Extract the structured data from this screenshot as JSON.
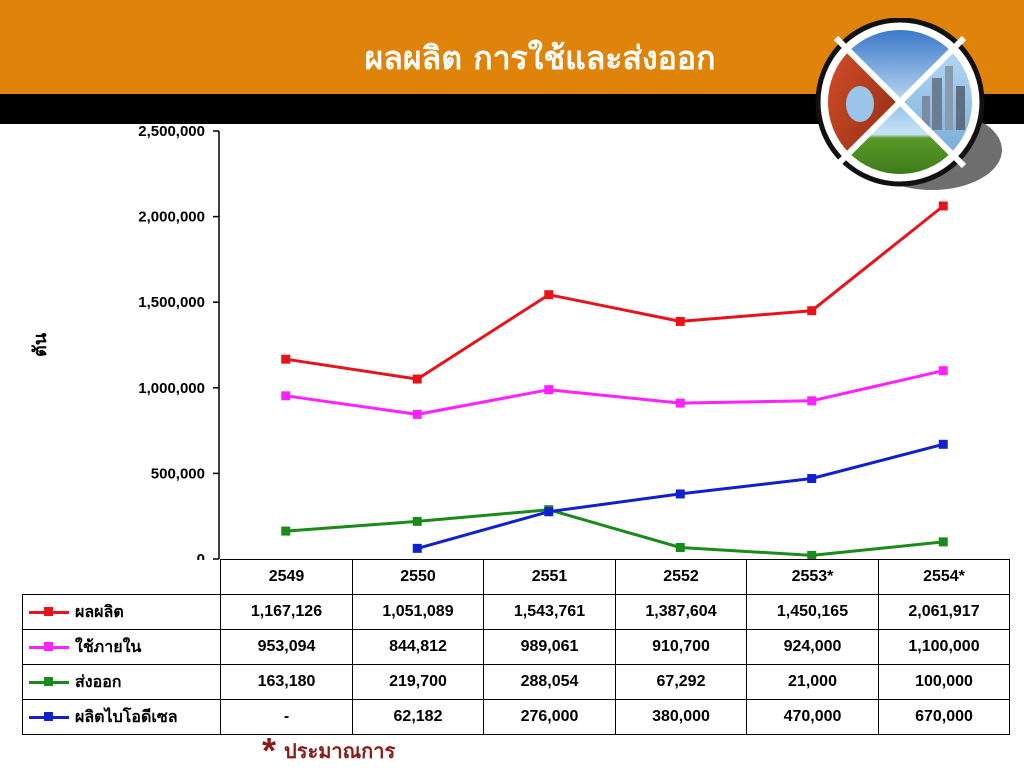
{
  "slide": {
    "title": "ผลผลิต การใช้และส่งออก",
    "colors": {
      "header_bg": "#e0830a",
      "band_bg": "#000000",
      "footnote": "#8b1a1a"
    }
  },
  "chart_data": {
    "type": "line",
    "title": "",
    "xlabel": "",
    "ylabel": "ตัน",
    "ylim": [
      0,
      2500000
    ],
    "yticks": [
      0,
      500000,
      1000000,
      1500000,
      2000000,
      2500000
    ],
    "ytick_labels": [
      "0",
      "500,000",
      "1,000,000",
      "1,500,000",
      "2,000,000",
      "2,500,000"
    ],
    "grid": false,
    "legend": "data-table",
    "categories": [
      "2549",
      "2550",
      "2551",
      "2552",
      "2553*",
      "2554*"
    ],
    "series": [
      {
        "name": "ผลผลิต",
        "color": "#e8131a",
        "values": [
          1167126,
          1051089,
          1543761,
          1387604,
          1450165,
          2061917
        ],
        "labels": [
          "1,167,126",
          "1,051,089",
          "1,543,761",
          "1,387,604",
          "1,450,165",
          "2,061,917"
        ]
      },
      {
        "name": "ใช้ภายใน",
        "color": "#ff22ff",
        "values": [
          953094,
          844812,
          989061,
          910700,
          924000,
          1100000
        ],
        "labels": [
          "953,094",
          "844,812",
          "989,061",
          "910,700",
          "924,000",
          "1,100,000"
        ]
      },
      {
        "name": "ส่งออก",
        "color": "#1a8a1a",
        "values": [
          163180,
          219700,
          288054,
          67292,
          21000,
          100000
        ],
        "labels": [
          "163,180",
          "219,700",
          "288,054",
          "67,292",
          "21,000",
          "100,000"
        ]
      },
      {
        "name": "ผลิตไบโอดีเซล",
        "color": "#1020cc",
        "values": [
          null,
          62182,
          276000,
          380000,
          470000,
          670000
        ],
        "labels": [
          "-",
          "62,182",
          "276,000",
          "380,000",
          "470,000",
          "670,000"
        ]
      }
    ]
  },
  "footnote": {
    "symbol": "*",
    "text": "ประมาณการ"
  }
}
